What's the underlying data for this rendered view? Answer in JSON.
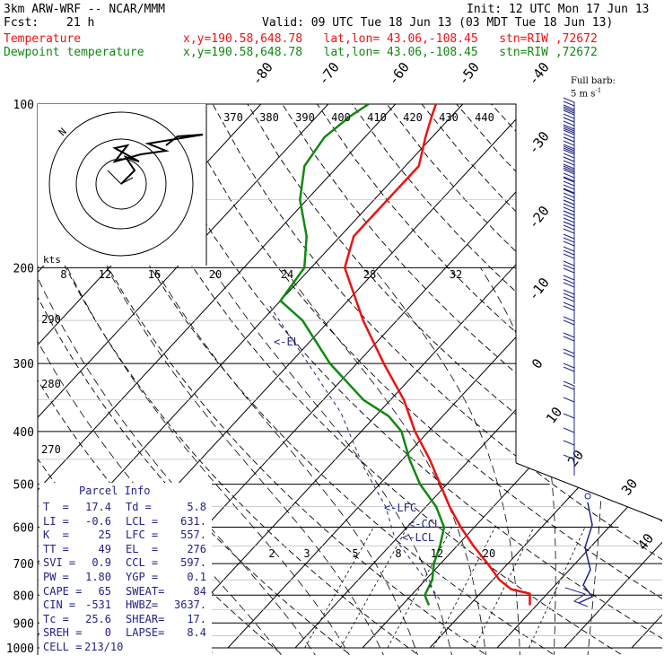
{
  "header": {
    "model": "3km ARW-WRF -- NCAR/MMM",
    "init": "Init: 12 UTC Mon 17 Jun 13",
    "fcst_label": "Fcst:",
    "fcst_value": "21 h",
    "valid": "Valid: 09 UTC Tue 18 Jun 13 (03 MDT Tue 18 Jun 13)",
    "temp_label": "Temperature",
    "dew_label": "Dewpoint temperature",
    "location": "x,y=190.58,648.78   lat,lon= 43.06,-108.45   stn=RIW ,72672"
  },
  "barb_legend": {
    "line1": "Full barb:",
    "line2": "5 m s",
    "exp": "-1"
  },
  "parcel": {
    "title": "Parcel Info",
    "rows": [
      [
        "T  =",
        "17.4",
        "Td =",
        "5.8"
      ],
      [
        "LI =",
        "-0.6",
        "LCL =",
        "631."
      ],
      [
        "K  =",
        "25",
        "LFC =",
        "557."
      ],
      [
        "TT =",
        "49",
        "EL  =",
        "276"
      ],
      [
        "SVI =",
        "0.9",
        "CCL =",
        "597."
      ],
      [
        "PW =",
        "1.80",
        "YGP =",
        "0.1"
      ],
      [
        "CAPE =",
        "65",
        "SWEAT=",
        "84"
      ],
      [
        "CIN =",
        "-531",
        "HWBZ=",
        "3637."
      ],
      [
        "Tc =",
        "25.6",
        "SHEAR=",
        "17."
      ],
      [
        "SREH =",
        "0",
        "LAPSE=",
        "8.4"
      ],
      [
        "CELL =",
        "213/10",
        "",
        ""
      ]
    ]
  },
  "hodograph": {
    "units": "kts",
    "ring_labels": [
      "8",
      "12",
      "16",
      "20",
      "24",
      "28",
      "32"
    ]
  },
  "colors": {
    "temperature": "#ee1111",
    "dewpoint": "#118811",
    "annotation": "#222288",
    "grid": "#000000"
  },
  "chart_data": {
    "type": "line",
    "diagram": "skew-T log-p",
    "y_axis": {
      "scale": "log",
      "ticks": [
        100,
        200,
        300,
        400,
        500,
        600,
        700,
        800,
        900,
        1000
      ]
    },
    "isotherm_labels": [
      "-80",
      "-70",
      "-60",
      "-50",
      "-40",
      "-30",
      "-20",
      "-10",
      "0",
      "10",
      "20",
      "30",
      "40"
    ],
    "theta_labels": [
      "290",
      "280",
      "270"
    ],
    "theta_e_labels": [
      "370",
      "380",
      "390",
      "400",
      "410",
      "420",
      "430",
      "440"
    ],
    "mixing_ratio_labels": [
      "2",
      "3",
      "5",
      "8",
      "12",
      "20"
    ],
    "levels": [
      {
        "name": "EL",
        "text": "<-EL"
      },
      {
        "name": "LFC",
        "text": "<-LFC"
      },
      {
        "name": "CCL",
        "text": "<-CCL"
      },
      {
        "name": "LCL",
        "text": "<-LCL"
      }
    ],
    "series": [
      {
        "name": "Temperature",
        "points": [
          [
            835,
            19
          ],
          [
            795,
            17.4
          ],
          [
            780,
            14
          ],
          [
            750,
            11
          ],
          [
            700,
            7
          ],
          [
            650,
            2.5
          ],
          [
            600,
            -2
          ],
          [
            550,
            -6.5
          ],
          [
            500,
            -11
          ],
          [
            450,
            -16
          ],
          [
            400,
            -22
          ],
          [
            350,
            -28
          ],
          [
            300,
            -36
          ],
          [
            250,
            -45
          ],
          [
            200,
            -55
          ],
          [
            175,
            -58
          ],
          [
            150,
            -58
          ],
          [
            130,
            -58
          ],
          [
            115,
            -61
          ],
          [
            105,
            -63
          ],
          [
            100,
            -64
          ]
        ]
      },
      {
        "name": "Dewpoint temperature",
        "points": [
          [
            835,
            4
          ],
          [
            800,
            2
          ],
          [
            750,
            1
          ],
          [
            700,
            -1
          ],
          [
            650,
            -2.5
          ],
          [
            600,
            -4.5
          ],
          [
            550,
            -8.5
          ],
          [
            500,
            -14
          ],
          [
            450,
            -19
          ],
          [
            400,
            -24
          ],
          [
            375,
            -28
          ],
          [
            350,
            -34
          ],
          [
            300,
            -44
          ],
          [
            250,
            -54
          ],
          [
            230,
            -60
          ],
          [
            200,
            -61
          ],
          [
            175,
            -65
          ],
          [
            150,
            -71
          ],
          [
            130,
            -75
          ],
          [
            115,
            -76
          ],
          [
            105,
            -75
          ],
          [
            100,
            -74
          ]
        ]
      }
    ]
  }
}
